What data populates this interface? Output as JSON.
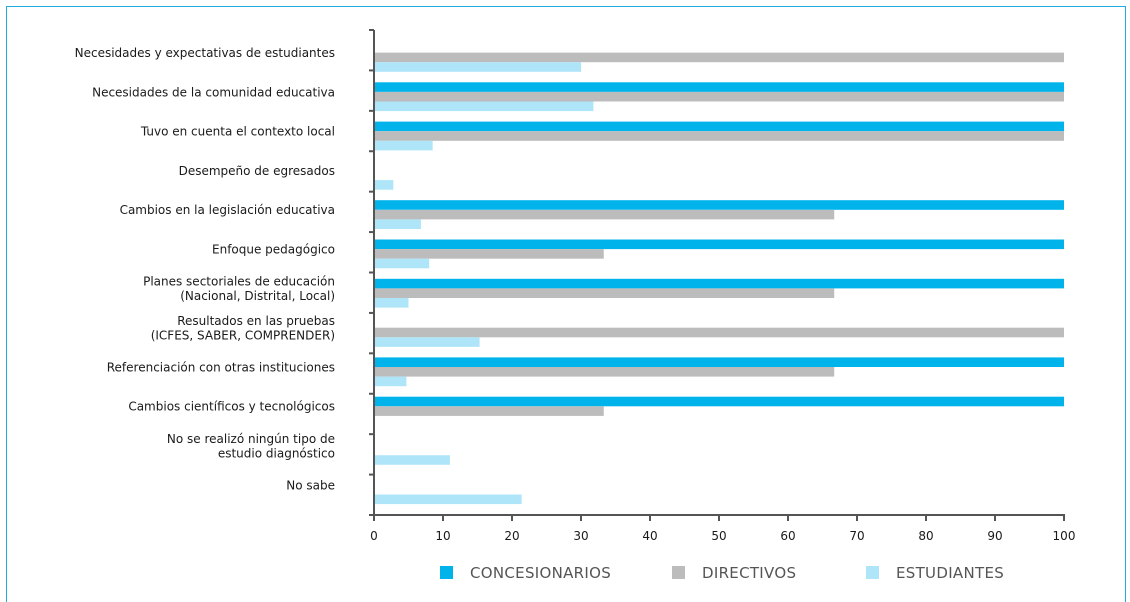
{
  "chart_data": {
    "type": "bar",
    "orientation": "horizontal",
    "categories": [
      [
        "Necesidades y expectativas de estudiantes"
      ],
      [
        "Necesidades de la comunidad educativa"
      ],
      [
        "Tuvo en cuenta el contexto local"
      ],
      [
        "Desempeño de egresados"
      ],
      [
        "Cambios en la legislación educativa"
      ],
      [
        "Enfoque pedagógico"
      ],
      [
        "Planes sectoriales de educación",
        "(Nacional, Distrital, Local)"
      ],
      [
        "Resultados en las pruebas",
        "(ICFES, SABER, COMPRENDER)"
      ],
      [
        "Referenciación con otras instituciones"
      ],
      [
        "Cambios científicos y tecnológicos"
      ],
      [
        "No se realizó ningún tipo de",
        "estudio diagnóstico"
      ],
      [
        "No sabe"
      ]
    ],
    "series": [
      {
        "name": "CONCESIONARIOS",
        "color": "#00b4eb",
        "values": [
          0,
          100,
          100,
          0,
          100,
          100,
          100,
          0,
          100,
          100,
          0,
          0
        ]
      },
      {
        "name": "DIRECTIVOS",
        "color": "#bcbcbc",
        "values": [
          100,
          100,
          100,
          0,
          66.7,
          33.3,
          66.7,
          100,
          66.7,
          33.3,
          0,
          0
        ]
      },
      {
        "name": "ESTUDIANTES",
        "color": "#aee5f8",
        "values": [
          30,
          31.8,
          8.5,
          2.8,
          6.8,
          8,
          5,
          15.3,
          4.7,
          0,
          11,
          21.4
        ]
      }
    ],
    "xlim": [
      0,
      100
    ],
    "xticks": [
      "0",
      "10",
      "20",
      "30",
      "40",
      "50",
      "60",
      "70",
      "80",
      "90",
      "100"
    ],
    "grid": false,
    "legend_position": "bottom"
  }
}
